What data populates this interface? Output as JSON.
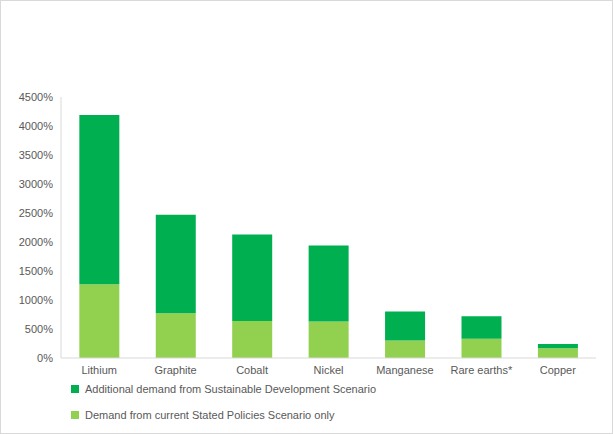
{
  "chart_data": {
    "type": "bar",
    "stacked": true,
    "grid": false,
    "legend": "bottom",
    "categories": [
      "Lithium",
      "Graphite",
      "Cobalt",
      "Nickel",
      "Manganese",
      "Rare earths*",
      "Copper"
    ],
    "series": [
      {
        "name": "Demand from current Stated Policies Scenario only",
        "color": "#92d050",
        "values": [
          1270,
          770,
          640,
          630,
          300,
          330,
          170
        ]
      },
      {
        "name": "Additional demand from Sustainable Development Scenario",
        "color": "#00b050",
        "values": [
          2920,
          1700,
          1490,
          1310,
          500,
          390,
          70
        ]
      }
    ],
    "ylim": [
      0,
      4500
    ],
    "yticks": [
      {
        "value": 0,
        "label": "0%"
      },
      {
        "value": 500,
        "label": "500%"
      },
      {
        "value": 1000,
        "label": "1000%"
      },
      {
        "value": 1500,
        "label": "1500%"
      },
      {
        "value": 2000,
        "label": "2000%"
      },
      {
        "value": 2500,
        "label": "2500%"
      },
      {
        "value": 3000,
        "label": "3000%"
      },
      {
        "value": 3500,
        "label": "3500%"
      },
      {
        "value": 4000,
        "label": "4000%"
      },
      {
        "value": 4500,
        "label": "4500%"
      }
    ]
  }
}
